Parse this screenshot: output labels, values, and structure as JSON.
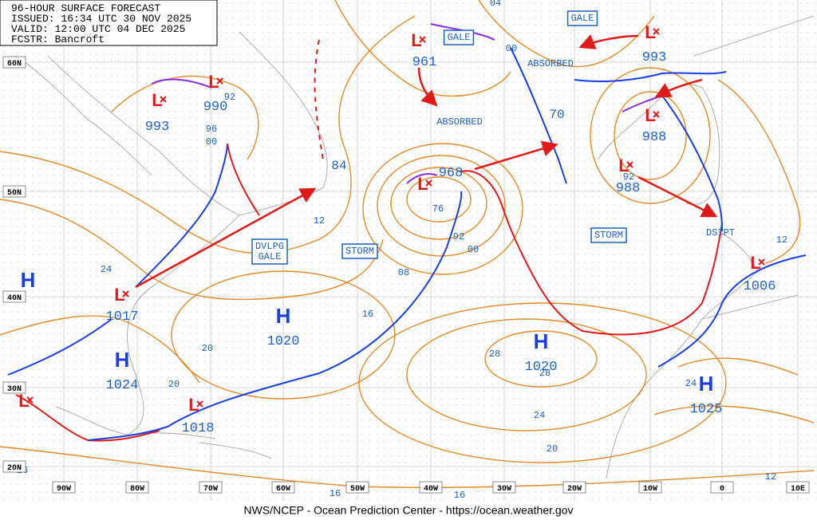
{
  "header": {
    "lines": [
      "96-HOUR SURFACE FORECAST",
      "ISSUED: 16:34 UTC 30 NOV 2025",
      "VALID: 12:00 UTC 04 DEC 2025",
      "FCSTR: Bancroft"
    ]
  },
  "footer": "NWS/NCEP - Ocean Prediction Center - https://ocean.weather.gov",
  "highs": [
    {
      "symbol": "H",
      "pressure": "1020"
    },
    {
      "symbol": "H",
      "pressure": "1024"
    },
    {
      "symbol": "H",
      "pressure": "1020"
    },
    {
      "symbol": "H",
      "pressure": "1025"
    },
    {
      "symbol": "H"
    }
  ],
  "lows": [
    {
      "symbol": "L",
      "pressure": "993"
    },
    {
      "symbol": "L",
      "pressure": "990"
    },
    {
      "symbol": "L",
      "pressure": "961"
    },
    {
      "symbol": "L",
      "pressure": "968"
    },
    {
      "symbol": "L",
      "pressure": "993"
    },
    {
      "symbol": "L",
      "pressure": "988"
    },
    {
      "symbol": "L",
      "pressure": "988"
    },
    {
      "symbol": "L",
      "pressure": "1017"
    },
    {
      "symbol": "L",
      "pressure": "1018"
    },
    {
      "symbol": "L",
      "pressure": "1006"
    },
    {
      "symbol": "L"
    }
  ],
  "boxed_labels": [
    {
      "lines": [
        "GALE"
      ]
    },
    {
      "lines": [
        "GALE"
      ]
    },
    {
      "lines": [
        "STORM"
      ]
    },
    {
      "lines": [
        "STORM"
      ]
    },
    {
      "lines": [
        "DVLPG",
        "GALE"
      ]
    }
  ],
  "plain_labels": [
    "ABSORBED",
    "ABSORBED",
    "DSIPT"
  ],
  "isobar_labels": [
    "92",
    "96",
    "00",
    "84",
    "12",
    "76",
    "92",
    "00",
    "08",
    "16",
    "20",
    "20",
    "24",
    "28",
    "28",
    "24",
    "20",
    "16",
    "16",
    "16",
    "12",
    "12",
    "24",
    "92",
    "00",
    "04",
    "70"
  ],
  "lat_labels": [
    "60N",
    "50N",
    "40N",
    "30N",
    "20N"
  ],
  "lon_labels": [
    "90W",
    "80W",
    "70W",
    "60W",
    "50W",
    "40W",
    "30W",
    "20W",
    "10W",
    "0",
    "10E"
  ]
}
